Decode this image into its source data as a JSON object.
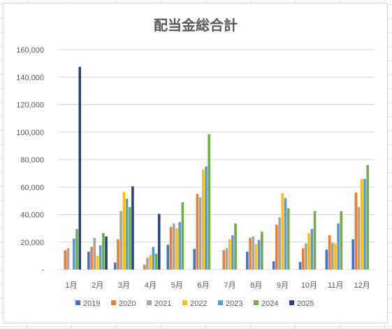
{
  "chart_data": {
    "type": "bar",
    "title": "配当金総合計",
    "xlabel": "",
    "ylabel": "",
    "categories": [
      "1月",
      "2月",
      "3月",
      "4月",
      "5月",
      "6月",
      "7月",
      "8月",
      "9月",
      "10月",
      "11月",
      "12月"
    ],
    "ylim": [
      0,
      160000
    ],
    "yticks": [
      0,
      20000,
      40000,
      60000,
      80000,
      100000,
      120000,
      140000,
      160000
    ],
    "ytick_labels": [
      "-",
      "20,000",
      "40,000",
      "60,000",
      "80,000",
      "100,000",
      "120,000",
      "140,000",
      "160,000"
    ],
    "grid": true,
    "legend_position": "bottom",
    "series": [
      {
        "name": "2019",
        "color": "#4472C4",
        "values": [
          0,
          13000,
          5000,
          0,
          18000,
          15000,
          0,
          13000,
          6000,
          5500,
          14500,
          22000
        ]
      },
      {
        "name": "2020",
        "color": "#ED7D31",
        "values": [
          14000,
          16500,
          22000,
          3500,
          31000,
          55000,
          14000,
          23000,
          32500,
          15500,
          25000,
          56000
        ]
      },
      {
        "name": "2021",
        "color": "#A5A5A5",
        "values": [
          15500,
          23000,
          42500,
          8500,
          33500,
          52500,
          15500,
          24000,
          38000,
          19000,
          19500,
          45500
        ]
      },
      {
        "name": "2022",
        "color": "#FFC000",
        "values": [
          0,
          10000,
          56500,
          10500,
          30000,
          72500,
          22000,
          18500,
          55500,
          26500,
          19000,
          66000
        ]
      },
      {
        "name": "2023",
        "color": "#5B9BD5",
        "values": [
          22500,
          17500,
          51500,
          16500,
          34500,
          75000,
          25000,
          21500,
          52000,
          29500,
          33500,
          66000
        ]
      },
      {
        "name": "2024",
        "color": "#70AD47",
        "values": [
          29500,
          26500,
          45500,
          11500,
          49000,
          98500,
          33500,
          27500,
          44500,
          42500,
          42500,
          76000
        ]
      },
      {
        "name": "2025",
        "color": "#264478",
        "values": [
          147500,
          24000,
          60500,
          40500,
          0,
          0,
          0,
          0,
          0,
          0,
          0,
          0
        ]
      }
    ]
  }
}
